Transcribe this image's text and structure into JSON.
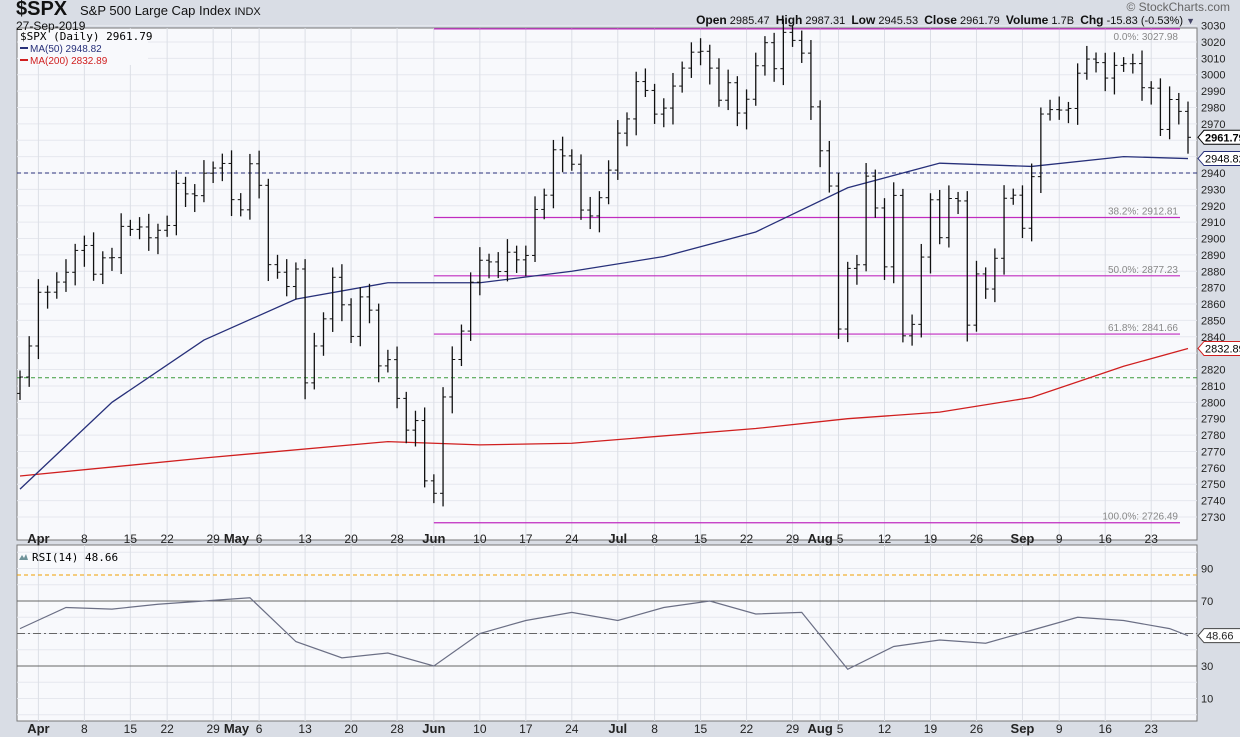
{
  "header": {
    "symbol": "$SPX",
    "name": "S&P 500 Large Cap Index",
    "exchange": "INDX",
    "date": "27-Sep-2019",
    "brand": "© StockCharts.com",
    "quote": {
      "open_label": "Open",
      "open": "2985.47",
      "high_label": "High",
      "high": "2987.31",
      "low_label": "Low",
      "low": "2945.53",
      "close_label": "Close",
      "close": "2961.79",
      "volume_label": "Volume",
      "volume": "1.7B",
      "chg_label": "Chg",
      "chg": "-15.83 (-0.53%)"
    }
  },
  "legend": {
    "price": "$SPX (Daily) 2961.79",
    "ma50": "MA(50) 2948.82",
    "ma200": "MA(200) 2832.89",
    "rsi": "RSI(14) 48.66"
  },
  "colors": {
    "ma50": "#27307a",
    "ma200": "#d01f1f",
    "fib": "#c02cc0",
    "bars": "#111111",
    "rsi": "#6b6f85",
    "rsi_fill": "#6f939a",
    "overbought_line": "#f0a000",
    "support_dash": "#27307a",
    "green_dash": "#3a9a3a"
  },
  "chart_data": [
    {
      "type": "ohlc",
      "title": "$SPX (Daily) 2961.79",
      "ylim": [
        2720,
        3035
      ],
      "yticks": [
        2730,
        2740,
        2750,
        2760,
        2770,
        2780,
        2790,
        2800,
        2810,
        2820,
        2830,
        2840,
        2850,
        2860,
        2870,
        2880,
        2890,
        2900,
        2910,
        2920,
        2930,
        2940,
        2950,
        2960,
        2970,
        2980,
        2990,
        3000,
        3010,
        3020,
        3030
      ],
      "xtick_labels": [
        {
          "day": "2019-04-01",
          "label": "Apr",
          "bold": true
        },
        {
          "day": "2019-04-08",
          "label": "8"
        },
        {
          "day": "2019-04-15",
          "label": "15"
        },
        {
          "day": "2019-04-22",
          "label": "22"
        },
        {
          "day": "2019-04-29",
          "label": "29"
        },
        {
          "day": "2019-05-01",
          "label": "May",
          "bold": true
        },
        {
          "day": "2019-05-06",
          "label": "6"
        },
        {
          "day": "2019-05-13",
          "label": "13"
        },
        {
          "day": "2019-05-20",
          "label": "20"
        },
        {
          "day": "2019-05-28",
          "label": "28"
        },
        {
          "day": "2019-06-03",
          "label": "Jun",
          "bold": true
        },
        {
          "day": "2019-06-10",
          "label": "10"
        },
        {
          "day": "2019-06-17",
          "label": "17"
        },
        {
          "day": "2019-06-24",
          "label": "24"
        },
        {
          "day": "2019-07-01",
          "label": "Jul",
          "bold": true
        },
        {
          "day": "2019-07-08",
          "label": "8"
        },
        {
          "day": "2019-07-15",
          "label": "15"
        },
        {
          "day": "2019-07-22",
          "label": "22"
        },
        {
          "day": "2019-07-29",
          "label": "29"
        },
        {
          "day": "2019-08-01",
          "label": "Aug",
          "bold": true
        },
        {
          "day": "2019-08-05",
          "label": "5"
        },
        {
          "day": "2019-08-12",
          "label": "12"
        },
        {
          "day": "2019-08-19",
          "label": "19"
        },
        {
          "day": "2019-08-26",
          "label": "26"
        },
        {
          "day": "2019-09-03",
          "label": "Sep",
          "bold": true
        },
        {
          "day": "2019-09-09",
          "label": "9"
        },
        {
          "day": "2019-09-16",
          "label": "16"
        },
        {
          "day": "2019-09-23",
          "label": "23"
        }
      ],
      "dates": [
        "2019-03-28",
        "2019-03-29",
        "2019-04-01",
        "2019-04-02",
        "2019-04-03",
        "2019-04-04",
        "2019-04-05",
        "2019-04-08",
        "2019-04-09",
        "2019-04-10",
        "2019-04-11",
        "2019-04-12",
        "2019-04-15",
        "2019-04-16",
        "2019-04-17",
        "2019-04-18",
        "2019-04-22",
        "2019-04-23",
        "2019-04-24",
        "2019-04-25",
        "2019-04-26",
        "2019-04-29",
        "2019-04-30",
        "2019-05-01",
        "2019-05-02",
        "2019-05-03",
        "2019-05-06",
        "2019-05-07",
        "2019-05-08",
        "2019-05-09",
        "2019-05-10",
        "2019-05-13",
        "2019-05-14",
        "2019-05-15",
        "2019-05-16",
        "2019-05-17",
        "2019-05-20",
        "2019-05-21",
        "2019-05-22",
        "2019-05-23",
        "2019-05-24",
        "2019-05-28",
        "2019-05-29",
        "2019-05-30",
        "2019-05-31",
        "2019-06-03",
        "2019-06-04",
        "2019-06-05",
        "2019-06-06",
        "2019-06-07",
        "2019-06-10",
        "2019-06-11",
        "2019-06-12",
        "2019-06-13",
        "2019-06-14",
        "2019-06-17",
        "2019-06-18",
        "2019-06-19",
        "2019-06-20",
        "2019-06-21",
        "2019-06-24",
        "2019-06-25",
        "2019-06-26",
        "2019-06-27",
        "2019-06-28",
        "2019-07-01",
        "2019-07-02",
        "2019-07-03",
        "2019-07-05",
        "2019-07-08",
        "2019-07-09",
        "2019-07-10",
        "2019-07-11",
        "2019-07-12",
        "2019-07-15",
        "2019-07-16",
        "2019-07-17",
        "2019-07-18",
        "2019-07-19",
        "2019-07-22",
        "2019-07-23",
        "2019-07-24",
        "2019-07-25",
        "2019-07-26",
        "2019-07-29",
        "2019-07-30",
        "2019-07-31",
        "2019-08-01",
        "2019-08-02",
        "2019-08-05",
        "2019-08-06",
        "2019-08-07",
        "2019-08-08",
        "2019-08-09",
        "2019-08-12",
        "2019-08-13",
        "2019-08-14",
        "2019-08-15",
        "2019-08-16",
        "2019-08-19",
        "2019-08-20",
        "2019-08-21",
        "2019-08-22",
        "2019-08-23",
        "2019-08-26",
        "2019-08-27",
        "2019-08-28",
        "2019-08-29",
        "2019-08-30",
        "2019-09-03",
        "2019-09-04",
        "2019-09-05",
        "2019-09-06",
        "2019-09-09",
        "2019-09-10",
        "2019-09-11",
        "2019-09-12",
        "2019-09-13",
        "2019-09-16",
        "2019-09-17",
        "2019-09-18",
        "2019-09-19",
        "2019-09-20",
        "2019-09-23",
        "2019-09-24",
        "2019-09-25",
        "2019-09-26",
        "2019-09-27"
      ],
      "close": [
        2815.44,
        2834.4,
        2867.19,
        2867.24,
        2873.4,
        2879.39,
        2892.74,
        2895.77,
        2878.2,
        2888.21,
        2888.32,
        2907.41,
        2905.58,
        2907.06,
        2900.45,
        2905.03,
        2907.97,
        2933.68,
        2927.25,
        2926.17,
        2939.88,
        2943.03,
        2945.83,
        2923.73,
        2917.52,
        2945.64,
        2932.47,
        2884.05,
        2879.42,
        2870.72,
        2881.4,
        2811.87,
        2834.41,
        2850.96,
        2876.32,
        2859.53,
        2840.23,
        2864.36,
        2856.27,
        2822.24,
        2826.06,
        2802.39,
        2783.02,
        2788.86,
        2752.06,
        2744.45,
        2803.27,
        2826.15,
        2843.49,
        2873.34,
        2886.73,
        2885.72,
        2879.84,
        2891.64,
        2886.98,
        2889.67,
        2917.75,
        2926.46,
        2954.18,
        2950.46,
        2945.35,
        2917.38,
        2913.78,
        2924.92,
        2941.76,
        2964.33,
        2973.01,
        2995.82,
        2990.41,
        2975.95,
        2979.63,
        2993.07,
        3004.04,
        3013.77,
        3014.3,
        3004.04,
        2984.42,
        2995.11,
        2976.61,
        2985.03,
        3005.47,
        3019.56,
        3003.67,
        3025.86,
        3020.97,
        3013.18,
        2980.38,
        2953.56,
        2932.05,
        2844.74,
        2881.77,
        2883.98,
        2938.09,
        2918.65,
        2882.7,
        2926.32,
        2840.6,
        2847.6,
        2888.68,
        2923.65,
        2900.51,
        2924.43,
        2922.95,
        2847.11,
        2878.38,
        2869.16,
        2887.94,
        2924.58,
        2926.46,
        2906.27,
        2937.78,
        2976.0,
        2978.71,
        2978.43,
        2979.39,
        3000.93,
        3009.57,
        3007.39,
        2997.96,
        3005.7,
        3006.73,
        3006.79,
        2992.07,
        2991.78,
        2966.6,
        2984.87,
        2977.62,
        2961.79
      ],
      "ma50": {
        "index": [
          0,
          10,
          20,
          30,
          40,
          50,
          60,
          70,
          80,
          90,
          100,
          110,
          120,
          127
        ],
        "values": [
          2747,
          2800,
          2838,
          2863,
          2873,
          2873,
          2880,
          2889,
          2904,
          2931,
          2946,
          2944,
          2950,
          2948.82
        ]
      },
      "ma200": {
        "index": [
          0,
          20,
          40,
          50,
          60,
          80,
          90,
          100,
          110,
          120,
          127
        ],
        "values": [
          2755,
          2766,
          2776,
          2774,
          2775,
          2784,
          2790,
          2794,
          2803,
          2822,
          2832.89
        ]
      },
      "fibonacci": {
        "from_date": "2019-06-03",
        "levels": [
          {
            "label": "0.0%: 3027.98",
            "value": 3027.98
          },
          {
            "label": "38.2%: 2912.81",
            "value": 2912.81
          },
          {
            "label": "50.0%: 2877.23",
            "value": 2877.23
          },
          {
            "label": "61.8%: 2841.66",
            "value": 2841.66
          },
          {
            "label": "100.0%: 2726.49",
            "value": 2726.49
          }
        ]
      },
      "horizontal_lines": [
        {
          "value": 2940,
          "style": "dashed",
          "color": "navy"
        },
        {
          "value": 2815,
          "style": "dashed",
          "color": "green"
        }
      ],
      "price_tags": [
        {
          "label": "2961.79",
          "value": 2961.79,
          "kind": "close"
        },
        {
          "label": "2948.82",
          "value": 2948.82,
          "kind": "ma50"
        },
        {
          "label": "2832.89",
          "value": 2832.89,
          "kind": "ma200"
        }
      ],
      "grid": true
    },
    {
      "type": "line",
      "title": "RSI(14) 48.66",
      "ylim": [
        0,
        100
      ],
      "yticks": [
        10,
        30,
        50,
        70,
        90
      ],
      "ytick_labels": [
        "10",
        "30",
        "",
        "70",
        "90"
      ],
      "reference_lines": [
        30,
        50,
        70,
        86
      ],
      "index": [
        0,
        5,
        10,
        15,
        20,
        25,
        30,
        35,
        40,
        45,
        50,
        55,
        60,
        65,
        70,
        75,
        80,
        85,
        90,
        95,
        100,
        105,
        110,
        115,
        120,
        125,
        127
      ],
      "values": [
        53,
        66,
        65,
        68,
        70,
        72,
        45,
        35,
        38,
        30,
        50,
        58,
        63,
        58,
        66,
        70,
        62,
        63,
        28,
        42,
        46,
        44,
        52,
        60,
        58,
        53,
        48.66
      ],
      "last_label": "48.66",
      "grid": true
    }
  ]
}
